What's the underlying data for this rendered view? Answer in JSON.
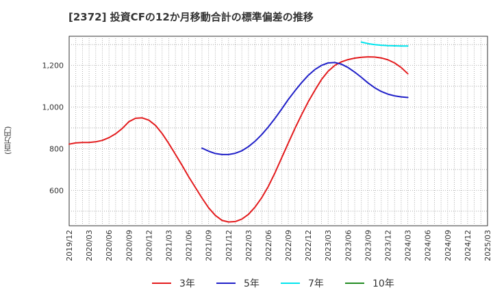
{
  "title": "[2372]  投資CFの12か月移動合計の標準偏差の推移",
  "chart_data": {
    "type": "line",
    "title": "[2372]  投資CFの12か月移動合計の標準偏差の推移",
    "ylabel": "(百万円)",
    "xlabel": "",
    "x_ticks": [
      "2019/12",
      "2020/03",
      "2020/06",
      "2020/09",
      "2020/12",
      "2021/03",
      "2021/06",
      "2021/09",
      "2021/12",
      "2022/03",
      "2022/06",
      "2022/09",
      "2022/12",
      "2023/03",
      "2023/06",
      "2023/09",
      "2023/12",
      "2024/03",
      "2024/06",
      "2024/09",
      "2024/12",
      "2025/03"
    ],
    "y_ticks": [
      600,
      800,
      1000,
      1200
    ],
    "ylim": [
      430,
      1340
    ],
    "grid": true,
    "legend_position": "bottom",
    "series": [
      {
        "name": "3年",
        "color": "#e31a1c",
        "x": [
          "2019/12",
          "2020/01",
          "2020/02",
          "2020/03",
          "2020/04",
          "2020/05",
          "2020/06",
          "2020/07",
          "2020/08",
          "2020/09",
          "2020/10",
          "2020/11",
          "2020/12",
          "2021/01",
          "2021/02",
          "2021/03",
          "2021/04",
          "2021/05",
          "2021/06",
          "2021/07",
          "2021/08",
          "2021/09",
          "2021/10",
          "2021/11",
          "2021/12",
          "2022/01",
          "2022/02",
          "2022/03",
          "2022/04",
          "2022/05",
          "2022/06",
          "2022/07",
          "2022/08",
          "2022/09",
          "2022/10",
          "2022/11",
          "2022/12",
          "2023/01",
          "2023/02",
          "2023/03",
          "2023/04",
          "2023/05",
          "2023/06",
          "2023/07",
          "2023/08",
          "2023/09",
          "2023/10",
          "2023/11",
          "2023/12",
          "2024/01",
          "2024/02",
          "2024/03"
        ],
        "values": [
          822,
          828,
          830,
          830,
          833,
          840,
          853,
          872,
          897,
          930,
          946,
          948,
          937,
          912,
          873,
          825,
          773,
          720,
          665,
          614,
          563,
          516,
          480,
          456,
          448,
          450,
          462,
          485,
          520,
          565,
          620,
          685,
          756,
          827,
          897,
          963,
          1025,
          1080,
          1132,
          1172,
          1200,
          1217,
          1228,
          1235,
          1239,
          1241,
          1240,
          1236,
          1227,
          1212,
          1190,
          1160
        ]
      },
      {
        "name": "5年",
        "color": "#1f1fc8",
        "x": [
          "2021/08",
          "2021/09",
          "2021/10",
          "2021/11",
          "2021/12",
          "2022/01",
          "2022/02",
          "2022/03",
          "2022/04",
          "2022/05",
          "2022/06",
          "2022/07",
          "2022/08",
          "2022/09",
          "2022/10",
          "2022/11",
          "2022/12",
          "2023/01",
          "2023/02",
          "2023/03",
          "2023/04",
          "2023/05",
          "2023/06",
          "2023/07",
          "2023/08",
          "2023/09",
          "2023/10",
          "2023/11",
          "2023/12",
          "2024/01",
          "2024/02",
          "2024/03"
        ],
        "values": [
          803,
          788,
          777,
          772,
          772,
          778,
          790,
          810,
          836,
          868,
          905,
          946,
          990,
          1036,
          1078,
          1117,
          1152,
          1180,
          1200,
          1212,
          1214,
          1206,
          1190,
          1168,
          1143,
          1116,
          1093,
          1075,
          1062,
          1054,
          1049,
          1046
        ]
      },
      {
        "name": "7年",
        "color": "#00e5ee",
        "x": [
          "2023/08",
          "2023/09",
          "2023/10",
          "2023/11",
          "2023/12",
          "2024/01",
          "2024/02",
          "2024/03"
        ],
        "values": [
          1312,
          1305,
          1300,
          1297,
          1295,
          1294,
          1293,
          1293
        ]
      },
      {
        "name": "10年",
        "color": "#228b22",
        "x": [],
        "values": []
      }
    ]
  }
}
